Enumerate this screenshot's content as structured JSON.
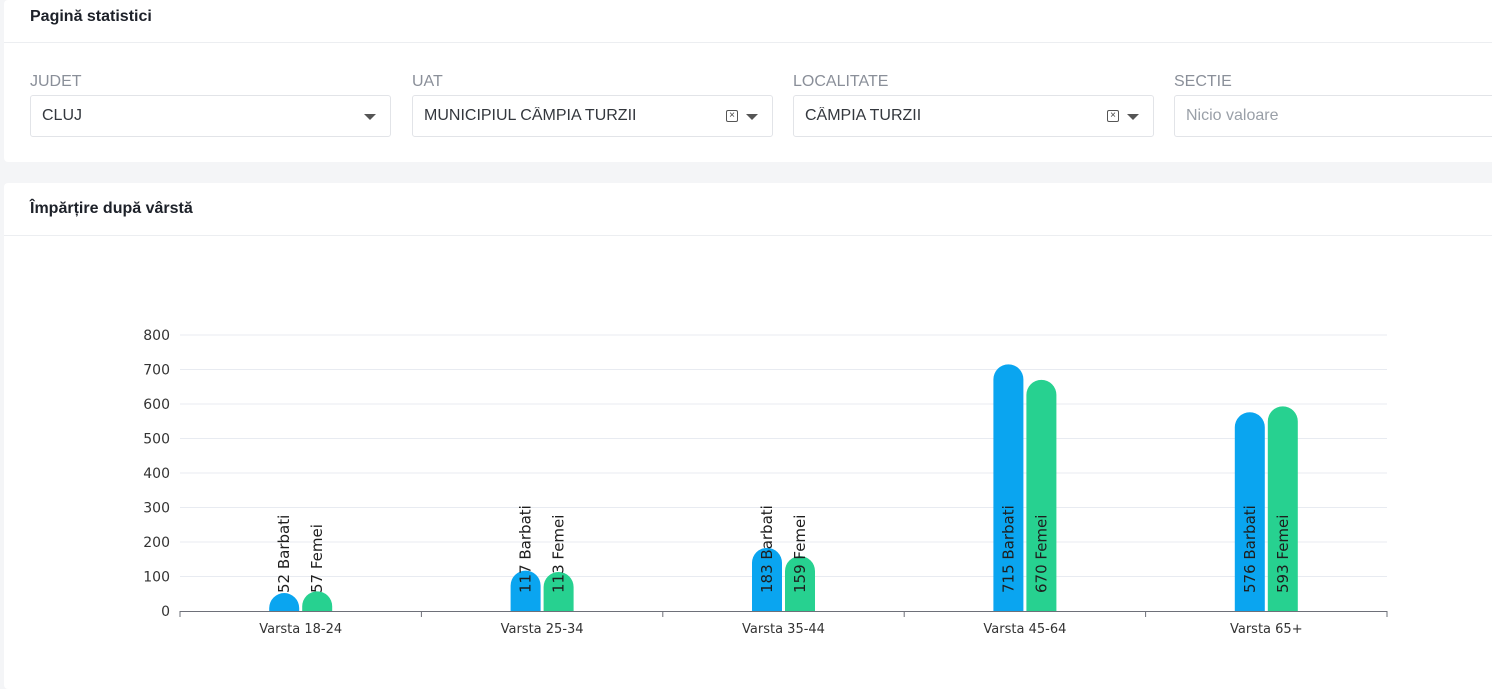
{
  "page": {
    "title": "Pagină statistici"
  },
  "filters": {
    "judet": {
      "label": "JUDET",
      "value": "CLUJ"
    },
    "uat": {
      "label": "UAT",
      "value": "MUNICIPIUL CÂMPIA TURZII"
    },
    "localitate": {
      "label": "LOCALITATE",
      "value": "CÂMPIA TURZII"
    },
    "sectie": {
      "label": "SECTIE",
      "placeholder": "Nicio valoare"
    }
  },
  "chart_section": {
    "title": "Împărțire după vârstă"
  },
  "chart_data": {
    "type": "bar",
    "categories": [
      "Varsta 18-24",
      "Varsta 25-34",
      "Varsta 35-44",
      "Varsta 45-64",
      "Varsta 65+"
    ],
    "series": [
      {
        "name": "Barbati",
        "values": [
          52,
          117,
          183,
          715,
          576
        ],
        "color": "#0aa5f0"
      },
      {
        "name": "Femei",
        "values": [
          57,
          113,
          159,
          670,
          593
        ],
        "color": "#27d190"
      }
    ],
    "ylim": [
      0,
      800
    ],
    "yticks": [
      0,
      100,
      200,
      300,
      400,
      500,
      600,
      700,
      800
    ],
    "grid": true,
    "data_labels": [
      [
        "52 Barbati",
        "57 Femei"
      ],
      [
        "117 Barbati",
        "113 Femei"
      ],
      [
        "183 Barbati",
        "159 Femei"
      ],
      [
        "715 Barbati",
        "670 Femei"
      ],
      [
        "576 Barbati",
        "593 Femei"
      ]
    ]
  }
}
